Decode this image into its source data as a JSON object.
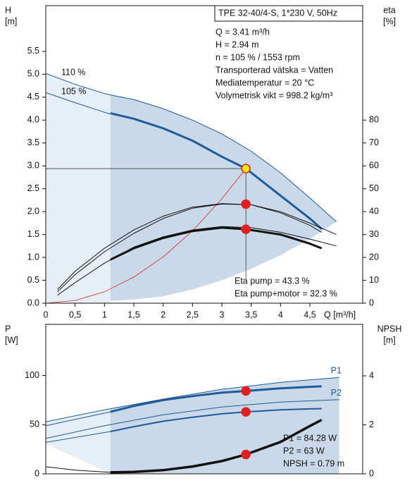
{
  "chart_data": [
    {
      "type": "line",
      "y_label": [
        "H",
        "[m]"
      ],
      "y2_label": [
        "eta",
        "[%]"
      ],
      "x_label": "Q [m³/h]",
      "header": "TPE 32-40/4-S, 1*230 V, 50Hz",
      "info": [
        "Q = 3.41 m³/h",
        "H = 2.94 m",
        "n = 105 % / 1553 rpm",
        "Transporterad vätska = Vatten",
        "Mediatemperatur = 20 °C",
        "Volymetrisk vikt = 998.2 kg/m³"
      ],
      "notes": [
        "Eta pump = 43.3 %",
        "Eta pump+motor = 32.3 %"
      ],
      "xlim": [
        0,
        5.4
      ],
      "ylim": [
        0,
        6.5
      ],
      "y2lim": [
        0,
        130
      ],
      "xticks": [
        0,
        {
          "value": 0.5,
          "label": "0,5"
        },
        1,
        {
          "value": 1.5,
          "label": "1,5"
        },
        2,
        {
          "value": 2.5,
          "label": "2,5"
        },
        3,
        {
          "value": 3.5,
          "label": "3,5"
        },
        4,
        {
          "value": 4.5,
          "label": "4,5"
        }
      ],
      "yticks": [
        {
          "value": 0,
          "label": "0.0"
        },
        0.5,
        {
          "value": 1,
          "label": "1.0"
        },
        1.5,
        {
          "value": 2,
          "label": "2.0"
        },
        2.5,
        {
          "value": 3,
          "label": "3.0"
        },
        3.5,
        {
          "value": 4,
          "label": "4.0"
        },
        4.5,
        {
          "value": 5,
          "label": "5.0"
        },
        5.5
      ],
      "y2ticks": [
        0,
        10,
        20,
        30,
        40,
        50,
        60,
        70,
        80
      ],
      "areas": [
        {
          "color": "#e6eff8",
          "x": [
            0,
            0.5,
            1,
            1.1
          ],
          "upper": [
            5.02,
            4.78,
            4.58,
            4.55
          ],
          "lower": [
            0,
            0,
            0,
            0
          ]
        },
        {
          "color": "#c9d9ea",
          "x": [
            1.1,
            1.5,
            2,
            2.5,
            3,
            3.5,
            4,
            4.5,
            4.95
          ],
          "upper": [
            4.55,
            4.45,
            4.25,
            4.0,
            3.7,
            3.32,
            2.85,
            2.3,
            1.78
          ],
          "lower": [
            0.05,
            0.08,
            0.15,
            0.3,
            0.5,
            0.75,
            1.05,
            1.4,
            1.78
          ]
        }
      ],
      "series": [
        {
          "name": "110 %",
          "label_position": "start",
          "color": "#1f5a9a",
          "width": 1,
          "x": [
            0,
            0.5,
            1,
            1.1,
            1.5,
            2,
            2.5,
            3,
            3.5,
            4,
            4.5,
            4.95
          ],
          "values": [
            5.02,
            4.78,
            4.58,
            4.55,
            4.45,
            4.25,
            4.0,
            3.7,
            3.32,
            2.85,
            2.3,
            1.78
          ]
        },
        {
          "name": "105 %",
          "label_position": "start",
          "color": "#1f5a9a",
          "width": 1,
          "x": [
            0,
            0.5,
            1.1
          ],
          "values": [
            4.6,
            4.38,
            4.13
          ]
        },
        {
          "color": "#1f5a9a",
          "width": 3,
          "x": [
            1.1,
            1.5,
            2,
            2.5,
            3,
            3.41,
            4,
            4.5,
            4.7
          ],
          "values": [
            4.15,
            4.03,
            3.82,
            3.55,
            3.2,
            2.94,
            2.35,
            1.85,
            1.62
          ]
        },
        {
          "color": "#e02020",
          "width": 0.8,
          "x": [
            0,
            0.5,
            1,
            1.5,
            2,
            2.5,
            3,
            3.41
          ],
          "values": [
            0,
            0.06,
            0.25,
            0.57,
            1.01,
            1.58,
            2.28,
            2.94
          ]
        },
        {
          "color": "#111111",
          "width": 1,
          "axis": "y2",
          "x": [
            0.2,
            0.5,
            1,
            1.5,
            2,
            2.5,
            3,
            3.5,
            4,
            4.5,
            4.95
          ],
          "values": [
            6,
            14,
            24,
            32,
            38,
            42,
            43.5,
            43,
            40,
            35,
            30
          ]
        },
        {
          "color": "#111111",
          "width": 1,
          "axis": "y2",
          "x": [
            0.2,
            0.5,
            1,
            1.5,
            2,
            2.5,
            3,
            3.5,
            4,
            4.5,
            4.7
          ],
          "values": [
            5,
            12.5,
            22.5,
            30.5,
            37,
            41.5,
            43.3,
            43,
            39.5,
            34,
            31
          ]
        },
        {
          "color": "#111111",
          "width": 1,
          "axis": "y2",
          "x": [
            0.2,
            0.5,
            1,
            1.5,
            2,
            2.5,
            3,
            3.5,
            4,
            4.5,
            4.95
          ],
          "values": [
            3.5,
            9,
            17.5,
            24.5,
            29,
            32,
            33.5,
            33,
            31,
            28,
            25
          ]
        },
        {
          "color": "#111111",
          "width": 3,
          "axis": "y2",
          "x": [
            1.1,
            1.5,
            2,
            2.5,
            3,
            3.41,
            4,
            4.5,
            4.7
          ],
          "values": [
            19,
            24,
            28.5,
            31.5,
            33,
            32.3,
            30,
            26,
            24
          ]
        }
      ],
      "points": [
        {
          "x": 3.41,
          "value": 2.94,
          "fill": "#ffe600",
          "stroke": "#e02020",
          "guides": true
        },
        {
          "x": 3.41,
          "value": 43.3,
          "axis": "y2",
          "fill": "#e02020",
          "stroke": "#e02020"
        },
        {
          "x": 3.41,
          "value": 32.3,
          "axis": "y2",
          "fill": "#e02020",
          "stroke": "#e02020"
        }
      ]
    },
    {
      "type": "line",
      "y_label": [
        "P",
        "[W]"
      ],
      "y2_label": [
        "NPSH",
        "[m]"
      ],
      "notes": [
        "P1 = 84.28 W",
        "P2 = 63 W",
        "NPSH = 0.79 m"
      ],
      "xlim": [
        0,
        5.4
      ],
      "ylim": [
        0,
        152
      ],
      "y2lim": [
        0,
        6.1
      ],
      "yticks": [
        0,
        50,
        100
      ],
      "y2ticks": [
        0,
        2,
        4
      ],
      "areas": [
        {
          "color": "#e6eff8",
          "x": [
            0,
            0.5,
            1,
            1.1
          ],
          "upper": [
            53,
            59.5,
            65,
            66.6
          ],
          "lower": [
            30,
            17,
            3,
            0
          ]
        },
        {
          "color": "#c9d9ea",
          "x": [
            1.1,
            2,
            3,
            4,
            5
          ],
          "upper": [
            66.6,
            76,
            86,
            93,
            98
          ],
          "lower": [
            0,
            0,
            0,
            0,
            0
          ]
        }
      ],
      "series": [
        {
          "name": "P1",
          "label_position": "end",
          "color": "#1f5a9a",
          "width": 1,
          "x": [
            0,
            1,
            2,
            3,
            4,
            5
          ],
          "values": [
            53,
            65,
            76,
            86,
            93,
            98
          ]
        },
        {
          "color": "#1f5a9a",
          "width": 1,
          "x": [
            0,
            1.1
          ],
          "values": [
            49,
            63
          ]
        },
        {
          "color": "#1f5a9a",
          "width": 3,
          "x": [
            1.1,
            1.5,
            2,
            2.5,
            3,
            3.41,
            4,
            4.5,
            4.7
          ],
          "values": [
            63,
            69,
            75,
            79,
            82.5,
            84.28,
            87,
            88.5,
            89
          ]
        },
        {
          "name": "P2",
          "label_position": "end",
          "color": "#1f5a9a",
          "width": 1,
          "x": [
            0,
            1,
            2,
            3,
            4,
            5
          ],
          "values": [
            36,
            49,
            60,
            68,
            73,
            75.5
          ]
        },
        {
          "color": "#1f5a9a",
          "width": 1,
          "x": [
            0,
            1.1
          ],
          "values": [
            32,
            43
          ]
        },
        {
          "color": "#1f5a9a",
          "width": 2,
          "x": [
            1.1,
            1.5,
            2,
            2.5,
            3,
            3.41,
            4,
            4.5,
            4.7
          ],
          "values": [
            43,
            48,
            53.5,
            57.5,
            61,
            63,
            65,
            66,
            66.3
          ]
        },
        {
          "color": "#111111",
          "width": 1,
          "axis": "y2",
          "x": [
            0,
            0.5,
            1.1
          ],
          "values": [
            0.29,
            0.15,
            0.06
          ]
        },
        {
          "color": "#111111",
          "width": 3.5,
          "axis": "y2",
          "x": [
            1.1,
            1.5,
            2,
            2.5,
            3,
            3.41,
            4,
            4.5,
            4.7
          ],
          "values": [
            0.06,
            0.08,
            0.15,
            0.3,
            0.52,
            0.79,
            1.3,
            1.95,
            2.2
          ]
        }
      ],
      "points": [
        {
          "x": 3.41,
          "value": 84.28,
          "fill": "#e02020",
          "stroke": "#e02020"
        },
        {
          "x": 3.41,
          "value": 63,
          "fill": "#e02020",
          "stroke": "#e02020"
        },
        {
          "x": 3.41,
          "value": 0.79,
          "axis": "y2",
          "fill": "#e02020",
          "stroke": "#e02020"
        }
      ]
    }
  ]
}
